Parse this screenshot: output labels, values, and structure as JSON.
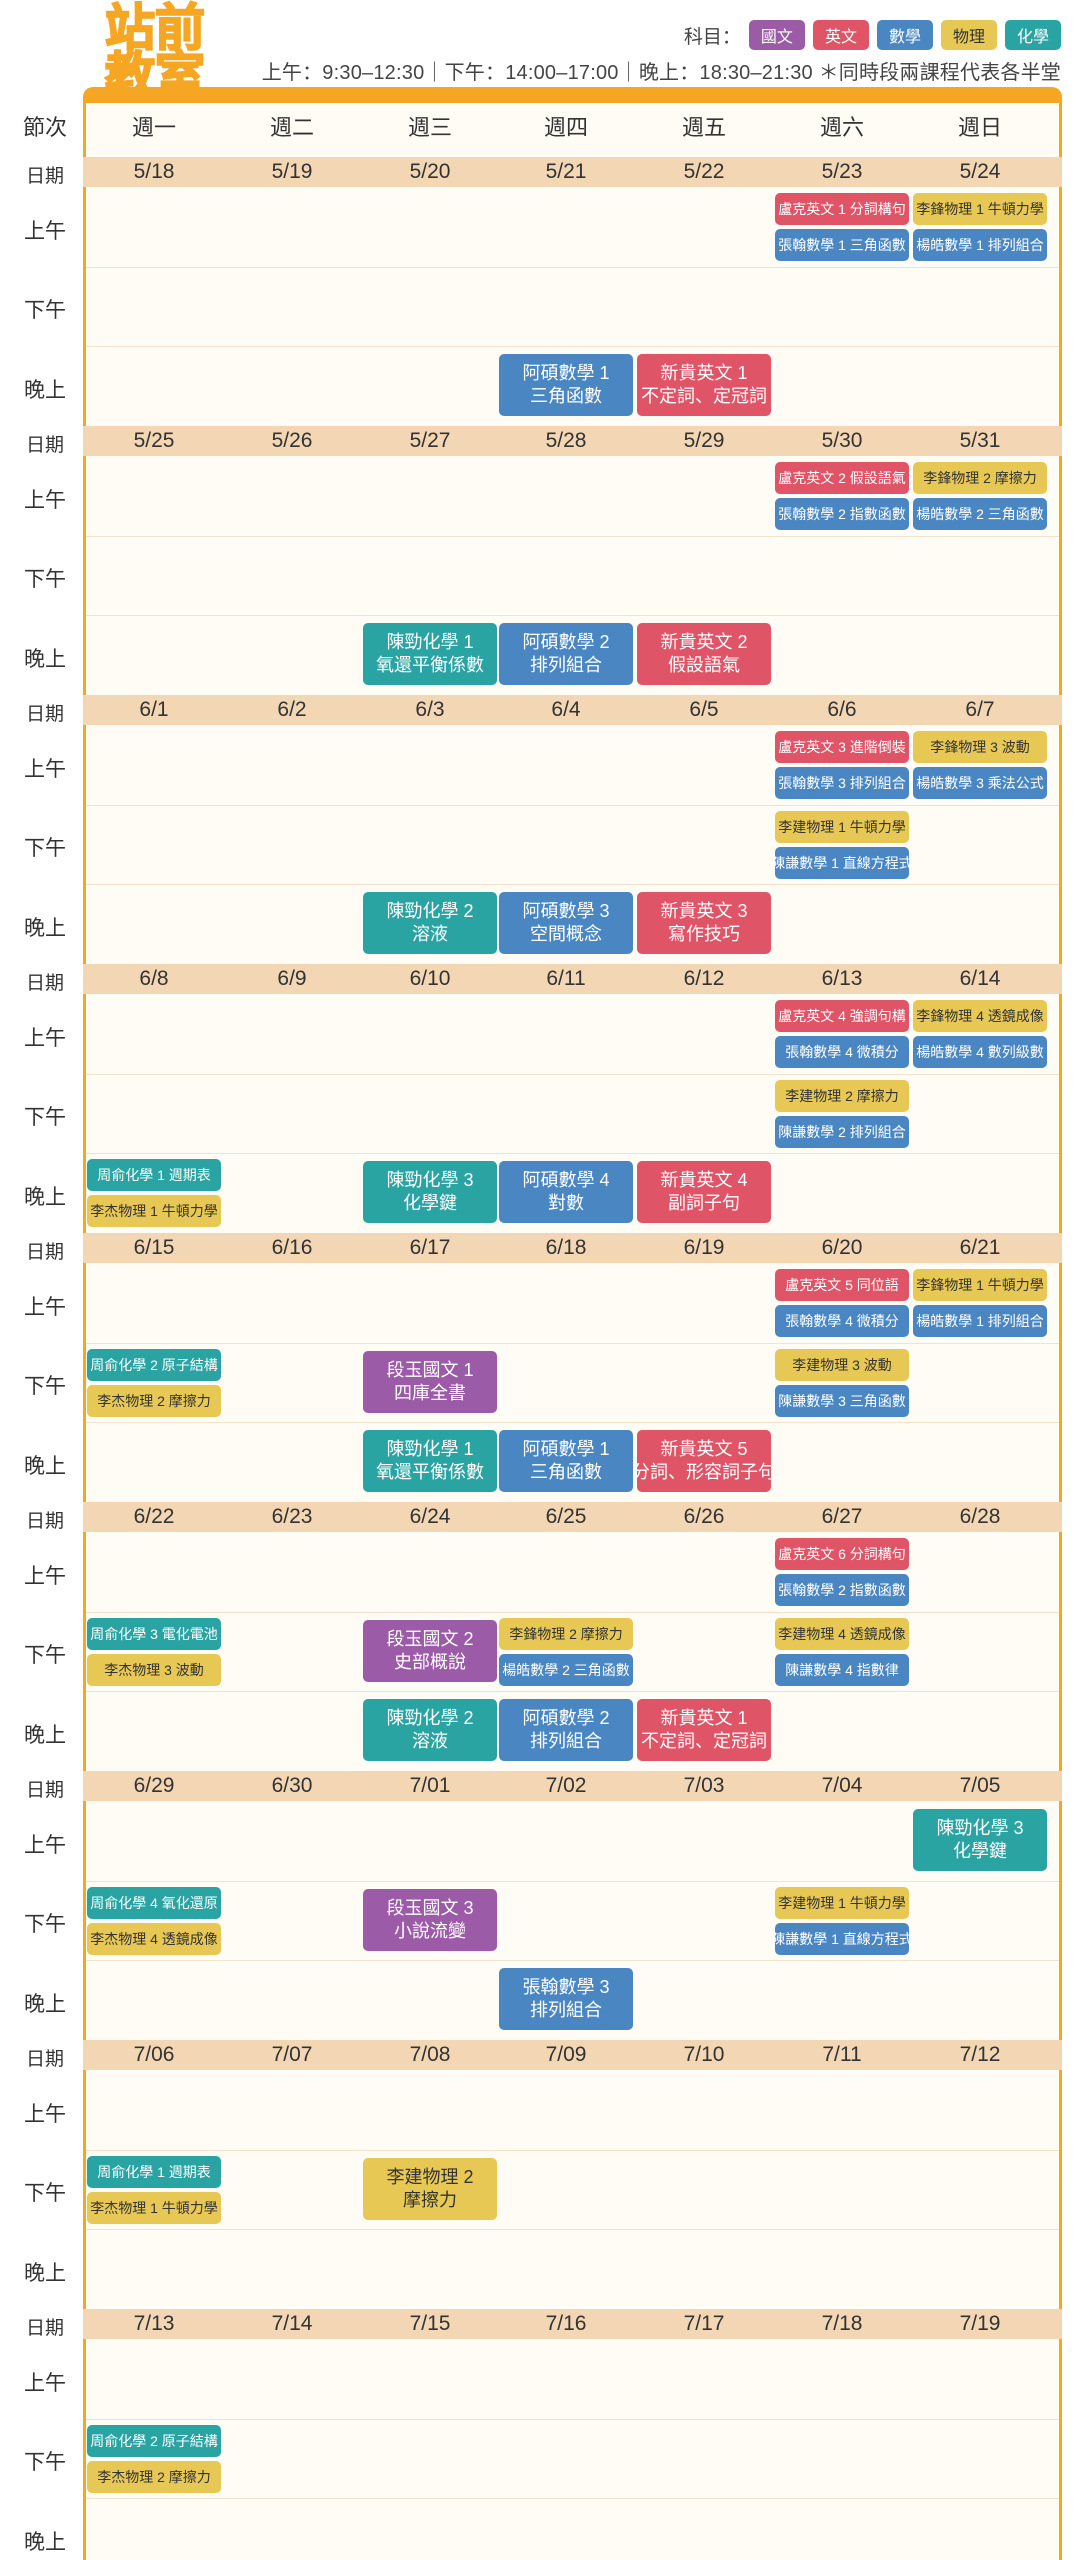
{
  "logo": {
    "line1": "站前",
    "line2": "教室"
  },
  "legend": {
    "label": "科目：",
    "subjects": [
      {
        "name": "國文",
        "color": "#9b5ba7"
      },
      {
        "name": "英文",
        "color": "#e05468"
      },
      {
        "name": "數學",
        "color": "#4a87c2"
      },
      {
        "name": "物理",
        "color": "#e7c855"
      },
      {
        "name": "化學",
        "color": "#2aa3a3"
      }
    ]
  },
  "hours_text": "上午：9:30–12:30｜下午：14:00–17:00｜晚上：18:30–21:30 ＊同時段兩課程代表各半堂",
  "header": {
    "label": "節次",
    "days": [
      "週一",
      "週二",
      "週三",
      "週四",
      "週五",
      "週六",
      "週日"
    ]
  },
  "slot_labels": [
    "上午",
    "下午",
    "晚上"
  ],
  "weeks": [
    {
      "date_label": "日期",
      "dates": [
        "5/18",
        "5/19",
        "5/20",
        "5/21",
        "5/22",
        "5/23",
        "5/24"
      ],
      "events": [
        {
          "day": 5,
          "slot": 0,
          "half": "top",
          "subject": "eng",
          "lines": [
            "盧克英文 1 分詞構句"
          ]
        },
        {
          "day": 5,
          "slot": 0,
          "half": "bottom",
          "subject": "math",
          "lines": [
            "張翰數學 1 三角函數"
          ]
        },
        {
          "day": 6,
          "slot": 0,
          "half": "top",
          "subject": "phy",
          "lines": [
            "李鋒物理 1 牛頓力學"
          ]
        },
        {
          "day": 6,
          "slot": 0,
          "half": "bottom",
          "subject": "math",
          "lines": [
            "楊皓數學 1 排列組合"
          ]
        },
        {
          "day": 3,
          "slot": 2,
          "half": "full",
          "subject": "math",
          "lines": [
            "阿碩數學 1",
            "三角函數"
          ]
        },
        {
          "day": 4,
          "slot": 2,
          "half": "full",
          "subject": "eng",
          "lines": [
            "新貴英文 1",
            "不定詞、定冠詞"
          ]
        }
      ]
    },
    {
      "date_label": "日期",
      "dates": [
        "5/25",
        "5/26",
        "5/27",
        "5/28",
        "5/29",
        "5/30",
        "5/31"
      ],
      "events": [
        {
          "day": 5,
          "slot": 0,
          "half": "top",
          "subject": "eng",
          "lines": [
            "盧克英文 2 假設語氣"
          ]
        },
        {
          "day": 5,
          "slot": 0,
          "half": "bottom",
          "subject": "math",
          "lines": [
            "張翰數學 2 指數函數"
          ]
        },
        {
          "day": 6,
          "slot": 0,
          "half": "top",
          "subject": "phy",
          "lines": [
            "李鋒物理 2 摩擦力"
          ]
        },
        {
          "day": 6,
          "slot": 0,
          "half": "bottom",
          "subject": "math",
          "lines": [
            "楊皓數學 2 三角函數"
          ]
        },
        {
          "day": 2,
          "slot": 2,
          "half": "full",
          "subject": "chem",
          "lines": [
            "陳勁化學 1",
            "氧還平衡係數"
          ]
        },
        {
          "day": 3,
          "slot": 2,
          "half": "full",
          "subject": "math",
          "lines": [
            "阿碩數學 2",
            "排列組合"
          ]
        },
        {
          "day": 4,
          "slot": 2,
          "half": "full",
          "subject": "eng",
          "lines": [
            "新貴英文 2",
            "假設語氣"
          ]
        }
      ]
    },
    {
      "date_label": "日期",
      "dates": [
        "6/1",
        "6/2",
        "6/3",
        "6/4",
        "6/5",
        "6/6",
        "6/7"
      ],
      "events": [
        {
          "day": 5,
          "slot": 0,
          "half": "top",
          "subject": "eng",
          "lines": [
            "盧克英文 3 進階倒裝"
          ]
        },
        {
          "day": 5,
          "slot": 0,
          "half": "bottom",
          "subject": "math",
          "lines": [
            "張翰數學 3 排列組合"
          ]
        },
        {
          "day": 6,
          "slot": 0,
          "half": "top",
          "subject": "phy",
          "lines": [
            "李鋒物理 3 波動"
          ]
        },
        {
          "day": 6,
          "slot": 0,
          "half": "bottom",
          "subject": "math",
          "lines": [
            "楊皓數學 3 乘法公式"
          ]
        },
        {
          "day": 5,
          "slot": 1,
          "half": "top",
          "subject": "phy",
          "lines": [
            "李建物理 1 牛頓力學"
          ]
        },
        {
          "day": 5,
          "slot": 1,
          "half": "bottom",
          "subject": "math",
          "lines": [
            "陳謙數學 1 直線方程式"
          ]
        },
        {
          "day": 2,
          "slot": 2,
          "half": "full",
          "subject": "chem",
          "lines": [
            "陳勁化學 2",
            "溶液"
          ]
        },
        {
          "day": 3,
          "slot": 2,
          "half": "full",
          "subject": "math",
          "lines": [
            "阿碩數學 3",
            "空間概念"
          ]
        },
        {
          "day": 4,
          "slot": 2,
          "half": "full",
          "subject": "eng",
          "lines": [
            "新貴英文 3",
            "寫作技巧"
          ]
        }
      ]
    },
    {
      "date_label": "日期",
      "dates": [
        "6/8",
        "6/9",
        "6/10",
        "6/11",
        "6/12",
        "6/13",
        "6/14"
      ],
      "events": [
        {
          "day": 5,
          "slot": 0,
          "half": "top",
          "subject": "eng",
          "lines": [
            "盧克英文 4 強調句構"
          ]
        },
        {
          "day": 5,
          "slot": 0,
          "half": "bottom",
          "subject": "math",
          "lines": [
            "張翰數學 4 微積分"
          ]
        },
        {
          "day": 6,
          "slot": 0,
          "half": "top",
          "subject": "phy",
          "lines": [
            "李鋒物理 4 透鏡成像"
          ]
        },
        {
          "day": 6,
          "slot": 0,
          "half": "bottom",
          "subject": "math",
          "lines": [
            "楊皓數學 4 數列級數"
          ]
        },
        {
          "day": 5,
          "slot": 1,
          "half": "top",
          "subject": "phy",
          "lines": [
            "李建物理 2 摩擦力"
          ]
        },
        {
          "day": 5,
          "slot": 1,
          "half": "bottom",
          "subject": "math",
          "lines": [
            "陳謙數學 2 排列組合"
          ]
        },
        {
          "day": 0,
          "slot": 2,
          "half": "top",
          "subject": "chem",
          "lines": [
            "周俞化學 1 週期表"
          ]
        },
        {
          "day": 0,
          "slot": 2,
          "half": "bottom",
          "subject": "phy",
          "lines": [
            "李杰物理 1 牛頓力學"
          ]
        },
        {
          "day": 2,
          "slot": 2,
          "half": "full",
          "subject": "chem",
          "lines": [
            "陳勁化學 3",
            "化學鍵"
          ]
        },
        {
          "day": 3,
          "slot": 2,
          "half": "full",
          "subject": "math",
          "lines": [
            "阿碩數學 4",
            "對數"
          ]
        },
        {
          "day": 4,
          "slot": 2,
          "half": "full",
          "subject": "eng",
          "lines": [
            "新貴英文 4",
            "副詞子句"
          ]
        }
      ]
    },
    {
      "date_label": "日期",
      "dates": [
        "6/15",
        "6/16",
        "6/17",
        "6/18",
        "6/19",
        "6/20",
        "6/21"
      ],
      "events": [
        {
          "day": 5,
          "slot": 0,
          "half": "top",
          "subject": "eng",
          "lines": [
            "盧克英文 5 同位語"
          ]
        },
        {
          "day": 5,
          "slot": 0,
          "half": "bottom",
          "subject": "math",
          "lines": [
            "張翰數學 4 微積分"
          ]
        },
        {
          "day": 6,
          "slot": 0,
          "half": "top",
          "subject": "phy",
          "lines": [
            "李鋒物理 1 牛頓力學"
          ]
        },
        {
          "day": 6,
          "slot": 0,
          "half": "bottom",
          "subject": "math",
          "lines": [
            "楊皓數學 1 排列組合"
          ]
        },
        {
          "day": 0,
          "slot": 1,
          "half": "top",
          "subject": "chem",
          "lines": [
            "周俞化學 2 原子結構"
          ]
        },
        {
          "day": 0,
          "slot": 1,
          "half": "bottom",
          "subject": "phy",
          "lines": [
            "李杰物理 2 摩擦力"
          ]
        },
        {
          "day": 2,
          "slot": 1,
          "half": "full",
          "subject": "chi",
          "lines": [
            "段玉國文 1",
            "四庫全書"
          ]
        },
        {
          "day": 5,
          "slot": 1,
          "half": "top",
          "subject": "phy",
          "lines": [
            "李建物理 3 波動"
          ]
        },
        {
          "day": 5,
          "slot": 1,
          "half": "bottom",
          "subject": "math",
          "lines": [
            "陳謙數學 3 三角函數"
          ]
        },
        {
          "day": 2,
          "slot": 2,
          "half": "full",
          "subject": "chem",
          "lines": [
            "陳勁化學 1",
            "氧還平衡係數"
          ]
        },
        {
          "day": 3,
          "slot": 2,
          "half": "full",
          "subject": "math",
          "lines": [
            "阿碩數學 1",
            "三角函數"
          ]
        },
        {
          "day": 4,
          "slot": 2,
          "half": "full",
          "subject": "eng",
          "lines": [
            "新貴英文 5",
            "分詞、形容詞子句"
          ]
        }
      ]
    },
    {
      "date_label": "日期",
      "dates": [
        "6/22",
        "6/23",
        "6/24",
        "6/25",
        "6/26",
        "6/27",
        "6/28"
      ],
      "events": [
        {
          "day": 5,
          "slot": 0,
          "half": "top",
          "subject": "eng",
          "lines": [
            "盧克英文 6 分詞構句"
          ]
        },
        {
          "day": 5,
          "slot": 0,
          "half": "bottom",
          "subject": "math",
          "lines": [
            "張翰數學 2 指數函數"
          ]
        },
        {
          "day": 0,
          "slot": 1,
          "half": "top",
          "subject": "chem",
          "lines": [
            "周俞化學 3 電化電池"
          ]
        },
        {
          "day": 0,
          "slot": 1,
          "half": "bottom",
          "subject": "phy",
          "lines": [
            "李杰物理 3 波動"
          ]
        },
        {
          "day": 2,
          "slot": 1,
          "half": "full",
          "subject": "chi",
          "lines": [
            "段玉國文 2",
            "史部概說"
          ]
        },
        {
          "day": 3,
          "slot": 1,
          "half": "top",
          "subject": "phy",
          "lines": [
            "李鋒物理 2 摩擦力"
          ]
        },
        {
          "day": 3,
          "slot": 1,
          "half": "bottom",
          "subject": "math",
          "lines": [
            "楊皓數學 2 三角函數"
          ]
        },
        {
          "day": 5,
          "slot": 1,
          "half": "top",
          "subject": "phy",
          "lines": [
            "李建物理 4 透鏡成像"
          ]
        },
        {
          "day": 5,
          "slot": 1,
          "half": "bottom",
          "subject": "math",
          "lines": [
            "陳謙數學 4 指數律"
          ]
        },
        {
          "day": 2,
          "slot": 2,
          "half": "full",
          "subject": "chem",
          "lines": [
            "陳勁化學 2",
            "溶液"
          ]
        },
        {
          "day": 3,
          "slot": 2,
          "half": "full",
          "subject": "math",
          "lines": [
            "阿碩數學 2",
            "排列組合"
          ]
        },
        {
          "day": 4,
          "slot": 2,
          "half": "full",
          "subject": "eng",
          "lines": [
            "新貴英文 1",
            "不定詞、定冠詞"
          ]
        }
      ]
    },
    {
      "date_label": "日期",
      "dates": [
        "6/29",
        "6/30",
        "7/01",
        "7/02",
        "7/03",
        "7/04",
        "7/05"
      ],
      "events": [
        {
          "day": 6,
          "slot": 0,
          "half": "full",
          "subject": "chem",
          "lines": [
            "陳勁化學 3",
            "化學鍵"
          ]
        },
        {
          "day": 0,
          "slot": 1,
          "half": "top",
          "subject": "chem",
          "lines": [
            "周俞化學 4 氧化還原"
          ]
        },
        {
          "day": 0,
          "slot": 1,
          "half": "bottom",
          "subject": "phy",
          "lines": [
            "李杰物理 4 透鏡成像"
          ]
        },
        {
          "day": 2,
          "slot": 1,
          "half": "full",
          "subject": "chi",
          "lines": [
            "段玉國文 3",
            "小說流變"
          ]
        },
        {
          "day": 5,
          "slot": 1,
          "half": "top",
          "subject": "phy",
          "lines": [
            "李建物理 1 牛頓力學"
          ]
        },
        {
          "day": 5,
          "slot": 1,
          "half": "bottom",
          "subject": "math",
          "lines": [
            "陳謙數學 1 直線方程式"
          ]
        },
        {
          "day": 3,
          "slot": 2,
          "half": "full",
          "subject": "math",
          "lines": [
            "張翰數學 3",
            "排列組合"
          ]
        }
      ]
    },
    {
      "date_label": "日期",
      "dates": [
        "7/06",
        "7/07",
        "7/08",
        "7/09",
        "7/10",
        "7/11",
        "7/12"
      ],
      "events": [
        {
          "day": 0,
          "slot": 1,
          "half": "top",
          "subject": "chem",
          "lines": [
            "周俞化學 1 週期表"
          ]
        },
        {
          "day": 0,
          "slot": 1,
          "half": "bottom",
          "subject": "phy",
          "lines": [
            "李杰物理 1 牛頓力學"
          ]
        },
        {
          "day": 2,
          "slot": 1,
          "half": "full",
          "subject": "phy",
          "lines": [
            "李建物理 2",
            "摩擦力"
          ]
        }
      ]
    },
    {
      "date_label": "日期",
      "dates": [
        "7/13",
        "7/14",
        "7/15",
        "7/16",
        "7/17",
        "7/18",
        "7/19"
      ],
      "events": [
        {
          "day": 0,
          "slot": 1,
          "half": "top",
          "subject": "chem",
          "lines": [
            "周俞化學 2 原子結構"
          ]
        },
        {
          "day": 0,
          "slot": 1,
          "half": "bottom",
          "subject": "phy",
          "lines": [
            "李杰物理 2 摩擦力"
          ]
        }
      ]
    }
  ],
  "first_date_label": "日期"
}
